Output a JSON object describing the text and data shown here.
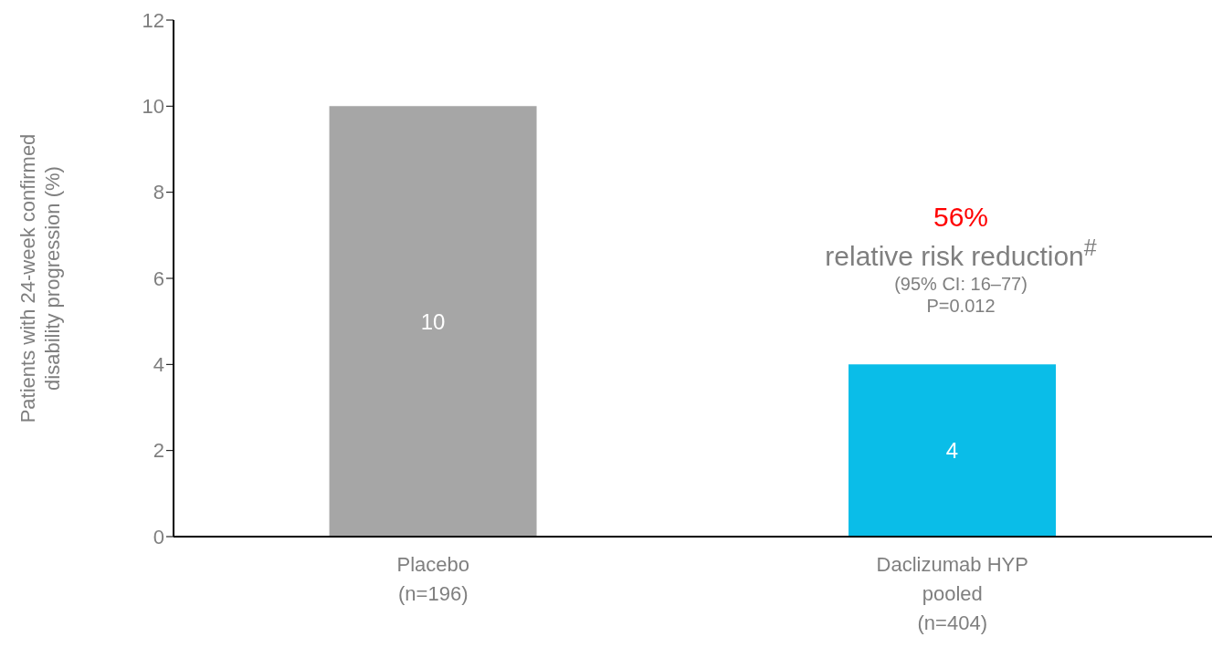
{
  "chart_data": {
    "type": "bar",
    "ylabel": "Patients with 24-week confirmed\ndisability progression (%)",
    "categories": [
      "Placebo\n(n=196)",
      "Daclizumab HYP\npooled\n(n=404)"
    ],
    "values": [
      10,
      4
    ],
    "colors": [
      "#a6a6a6",
      "#0abde8"
    ],
    "ylim": [
      0,
      12
    ],
    "yticks": [
      0,
      2,
      4,
      6,
      8,
      10,
      12
    ],
    "data_labels": true,
    "grid": false,
    "legend": false,
    "annotations": [
      "56%",
      "relative risk reduction$^{#}$",
      "(95% CI: 16–77)",
      "P=0.012"
    ]
  }
}
